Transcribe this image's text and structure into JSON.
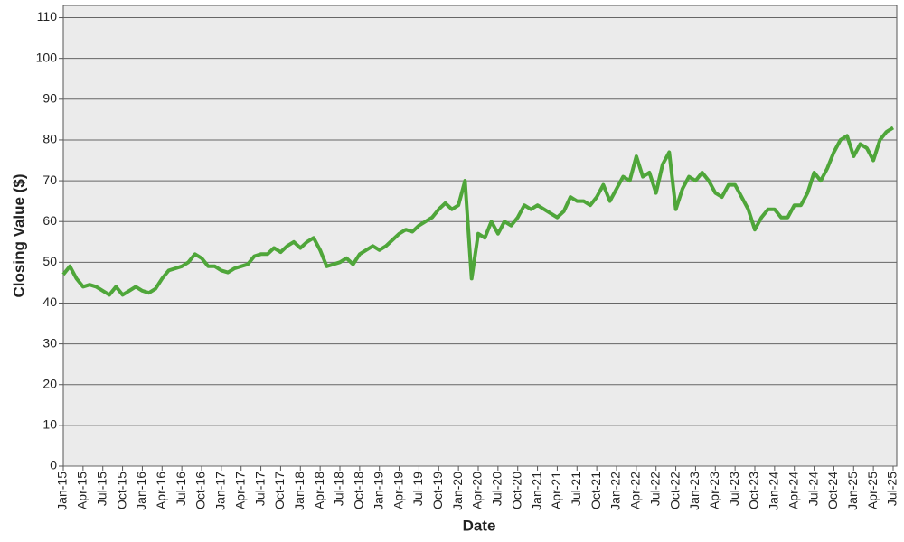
{
  "chart_data": {
    "type": "line",
    "xlabel": "Date",
    "ylabel": "Closing Value ($)",
    "categories": [
      "Jan-15",
      null,
      null,
      "Apr-15",
      null,
      null,
      "Jul-15",
      null,
      null,
      "Oct-15",
      null,
      null,
      "Jan-16",
      null,
      null,
      "Apr-16",
      null,
      null,
      "Jul-16",
      null,
      null,
      "Oct-16",
      null,
      null,
      "Jan-17",
      null,
      null,
      "Apr-17",
      null,
      null,
      "Jul-17",
      null,
      null,
      "Oct-17",
      null,
      null,
      "Jan-18",
      null,
      null,
      "Apr-18",
      null,
      null,
      "Jul-18",
      null,
      null,
      "Oct-18",
      null,
      null,
      "Jan-19",
      null,
      null,
      "Apr-19",
      null,
      null,
      "Jul-19",
      null,
      null,
      "Oct-19",
      null,
      null,
      "Jan-20",
      null,
      null,
      "Apr-20",
      null,
      null,
      "Jul-20",
      null,
      null,
      "Oct-20",
      null,
      null,
      "Jan-21",
      null,
      null,
      "Apr-21",
      null,
      null,
      "Jul-21",
      null,
      null,
      "Oct-21",
      null,
      null,
      "Jan-22",
      null,
      null,
      "Apr-22",
      null,
      null,
      "Jul-22",
      null,
      null,
      "Oct-22",
      null,
      null,
      "Jan-23",
      null,
      null,
      "Apr-23",
      null,
      null,
      "Jul-23",
      null,
      null,
      "Oct-23",
      null,
      null,
      "Jan-24",
      null,
      null,
      "Apr-24",
      null,
      null,
      "Jul-24",
      null,
      null,
      "Oct-24",
      null,
      null,
      "Jan-25",
      null,
      null,
      "Apr-25",
      null,
      null,
      "Jul-25"
    ],
    "values": [
      47,
      49,
      46,
      44,
      44.5,
      44,
      43,
      42,
      44,
      42,
      43,
      44,
      43,
      42.5,
      43.5,
      46,
      48,
      48.5,
      49,
      50,
      52,
      51,
      49,
      49,
      48,
      47.5,
      48.5,
      49,
      49.5,
      51.5,
      52,
      52,
      53.5,
      52.5,
      54,
      55,
      53.5,
      55,
      56,
      53,
      49,
      49.5,
      50,
      51,
      49.5,
      52,
      53,
      54,
      53,
      54,
      55.5,
      57,
      58,
      57.5,
      59,
      60,
      61,
      63,
      64.5,
      63,
      64,
      70,
      46,
      57,
      56,
      60,
      57,
      60,
      59,
      61,
      64,
      63,
      64,
      63,
      62,
      61,
      62.5,
      66,
      65,
      65,
      64,
      66,
      69,
      65,
      68,
      71,
      70,
      76,
      71,
      72,
      67,
      74,
      77,
      63,
      68,
      71,
      70,
      72,
      70,
      67,
      66,
      69,
      69,
      66,
      63,
      58,
      61,
      63,
      63,
      61,
      61,
      64,
      64,
      67,
      72,
      70,
      73,
      77,
      80,
      81,
      76,
      79,
      78,
      75,
      80,
      82,
      83
    ],
    "color": "#4fa63a",
    "ylim": [
      0,
      113
    ],
    "yticks": [
      0,
      10,
      20,
      30,
      40,
      50,
      60,
      70,
      80,
      90,
      100,
      110
    ],
    "grid": true
  }
}
